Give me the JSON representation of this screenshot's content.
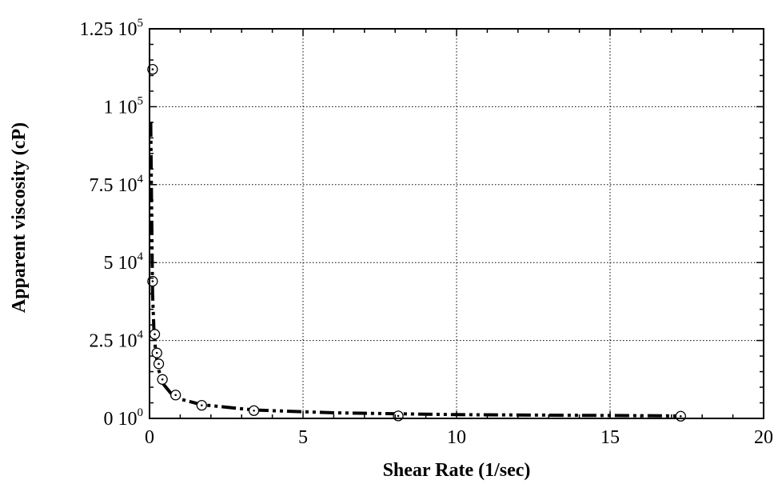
{
  "chart_data": {
    "type": "scatter",
    "title": "",
    "xlabel": "Shear Rate (1/sec)",
    "ylabel": "Apparent viscosity (cP)",
    "xlim": [
      0,
      20
    ],
    "ylim": [
      0,
      125000
    ],
    "grid": true,
    "x_ticks": [
      {
        "value": 0,
        "label": "0"
      },
      {
        "value": 5,
        "label": "5"
      },
      {
        "value": 10,
        "label": "10"
      },
      {
        "value": 15,
        "label": "15"
      },
      {
        "value": 20,
        "label": "20"
      }
    ],
    "y_ticks": [
      {
        "value": 0,
        "mantissa": "0",
        "exponent": "0"
      },
      {
        "value": 25000,
        "mantissa": "2.5",
        "exponent": "4"
      },
      {
        "value": 50000,
        "mantissa": "5",
        "exponent": "4"
      },
      {
        "value": 75000,
        "mantissa": "7.5",
        "exponent": "4"
      },
      {
        "value": 100000,
        "mantissa": "1",
        "exponent": "5"
      },
      {
        "value": 125000,
        "mantissa": "1.25",
        "exponent": "5"
      }
    ],
    "series": [
      {
        "style": "open-circle-markers",
        "x": [
          0.1,
          0.1,
          0.17,
          0.24,
          0.3,
          0.42,
          0.85,
          1.7,
          3.4,
          8.1,
          17.3
        ],
        "y": [
          112000,
          44000,
          27000,
          21000,
          17500,
          12500,
          7500,
          4200,
          2500,
          800,
          700
        ]
      },
      {
        "style": "dash-dot-fit-curve",
        "x": [
          0.04,
          0.06,
          0.08,
          0.1,
          0.14,
          0.2,
          0.3,
          0.45,
          0.7,
          1.0,
          1.7,
          3.4,
          6.0,
          10.0,
          17.3
        ],
        "y": [
          95000,
          75000,
          55000,
          40000,
          29000,
          21000,
          15500,
          11000,
          8000,
          6200,
          4400,
          2700,
          1800,
          1200,
          800
        ]
      }
    ]
  }
}
